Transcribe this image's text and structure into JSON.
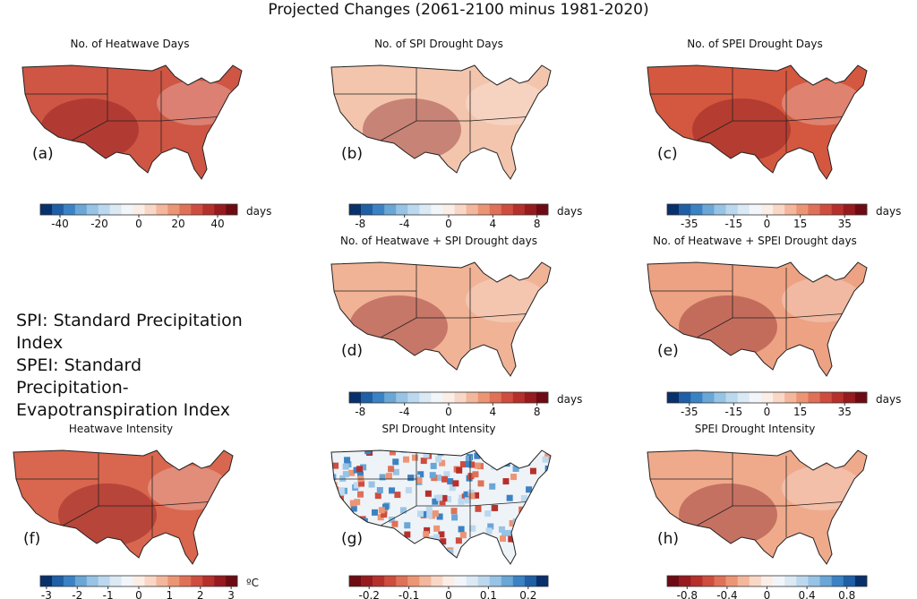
{
  "title": "Projected Changes (2061-2100 minus 1981-2020)",
  "colormap": [
    "#08306b",
    "#1f5fa6",
    "#3b82c4",
    "#6aa6d6",
    "#97c3e4",
    "#bcd8ee",
    "#dbe9f5",
    "#f2f6fa",
    "#fbeee6",
    "#f9d7c6",
    "#f4b79c",
    "#ec9575",
    "#df7158",
    "#ce4d3f",
    "#b6302b",
    "#961a1e",
    "#6e0b12"
  ],
  "notes": [
    "SPI: Standard Precipitation Index",
    "SPEI: Standard Precipitation-Evapotranspiration  Index"
  ],
  "panels": [
    {
      "title": "No. of Heatwave Days",
      "label": "(a)",
      "map_color": "#cf5644",
      "colorbar": {
        "lim": [
          -50,
          50
        ],
        "ticks": [
          -40,
          -20,
          0,
          20,
          40
        ],
        "unit": "days",
        "reversed": false
      }
    },
    {
      "title": "No. of SPI Drought Days",
      "label": "(b)",
      "map_color": "#f3c5ad",
      "colorbar": {
        "lim": [
          -9,
          9
        ],
        "ticks": [
          -8,
          -4,
          0,
          4,
          8
        ],
        "unit": "days",
        "reversed": false
      }
    },
    {
      "title": "No. of SPEI Drought Days",
      "label": "(c)",
      "map_color": "#d4583f",
      "colorbar": {
        "lim": [
          -45,
          45
        ],
        "ticks": [
          -35,
          -15,
          0,
          15,
          35
        ],
        "unit": "days",
        "reversed": false
      }
    },
    {
      "title": "No. of Heatwave + SPI Drought days",
      "label": "(d)",
      "map_color": "#f1b396",
      "colorbar": {
        "lim": [
          -9,
          9
        ],
        "ticks": [
          -8,
          -4,
          0,
          4,
          8
        ],
        "unit": "days",
        "reversed": false
      }
    },
    {
      "title": "No. of Heatwave + SPEI Drought days",
      "label": "(e)",
      "map_color": "#eda283",
      "colorbar": {
        "lim": [
          -45,
          45
        ],
        "ticks": [
          -35,
          -15,
          0,
          15,
          35
        ],
        "unit": "days",
        "reversed": false
      }
    },
    {
      "title": "Heatwave Intensity",
      "label": "(f)",
      "map_color": "#d9664e",
      "colorbar": {
        "lim": [
          -3.2,
          3.2
        ],
        "ticks": [
          -3,
          -2,
          -1,
          0,
          1,
          2,
          3
        ],
        "unit": "ºC",
        "reversed": false
      }
    },
    {
      "title": "SPI Drought Intensity",
      "label": "(g)",
      "map_color": "#eef3f8",
      "colorbar": {
        "lim": [
          -0.25,
          0.25
        ],
        "ticks": [
          -0.2,
          -0.1,
          0,
          0.1,
          0.2
        ],
        "unit": "",
        "reversed": true
      }
    },
    {
      "title": "SPEI Drought Intensity",
      "label": "(h)",
      "map_color": "#efaa8c",
      "colorbar": {
        "lim": [
          -1,
          1
        ],
        "ticks": [
          -0.8,
          -0.4,
          0,
          0.4,
          0.8
        ],
        "unit": "",
        "reversed": true
      }
    }
  ]
}
